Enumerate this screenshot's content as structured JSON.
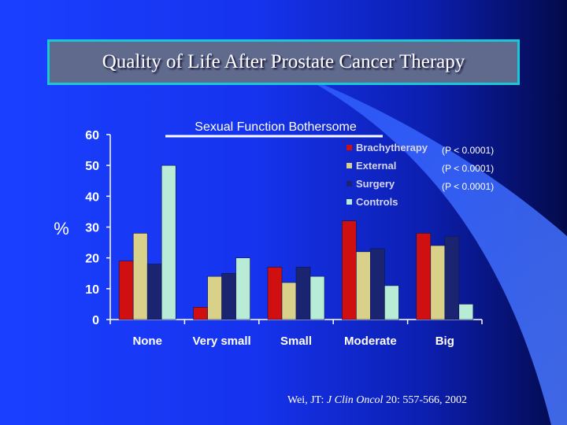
{
  "slide": {
    "title": "Quality of Life After Prostate Cancer Therapy",
    "citation_pre": "Wei, JT: ",
    "citation_journal": "J Clin Oncol",
    "citation_post": " 20: 557-566, 2002"
  },
  "colors": {
    "background_left": "#1a40ff",
    "background_right": "#030a4a",
    "title_border": "#19c7d8",
    "title_fill": "#606a8c"
  },
  "chart_data": {
    "type": "bar",
    "title": "Sexual Function Bothersome",
    "ylabel": "%",
    "xlabel": "",
    "ylim": [
      0,
      60
    ],
    "yticks": [
      0,
      10,
      20,
      30,
      40,
      50,
      60
    ],
    "grid": false,
    "legend_position": "top-right",
    "categories": [
      "None",
      "Very small",
      "Small",
      "Moderate",
      "Big"
    ],
    "series": [
      {
        "name": "Brachytherapy",
        "color": "#d01010",
        "pvalue": "(P < 0.0001)",
        "values": [
          19,
          4,
          17,
          32,
          28
        ]
      },
      {
        "name": "External",
        "color": "#d9d08a",
        "pvalue": "(P < 0.0001)",
        "values": [
          28,
          14,
          12,
          22,
          24
        ]
      },
      {
        "name": "Surgery",
        "color": "#1a2470",
        "pvalue": "(P < 0.0001)",
        "values": [
          18,
          15,
          17,
          23,
          27
        ]
      },
      {
        "name": "Controls",
        "color": "#b8ecd6",
        "pvalue": "",
        "values": [
          50,
          20,
          14,
          11,
          5
        ]
      }
    ]
  }
}
